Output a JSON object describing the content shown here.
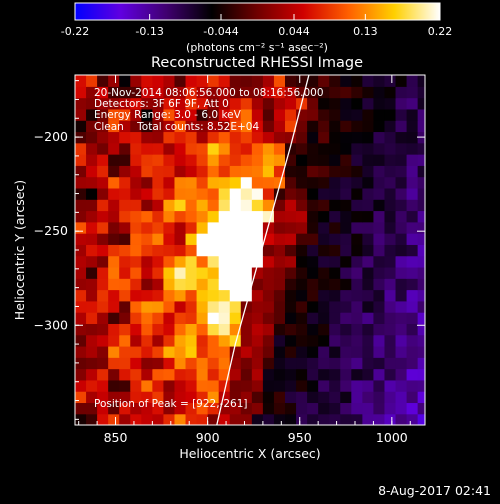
{
  "figure": {
    "title": "Reconstructed RHESSI Image",
    "annotations": [
      "20-Nov-2014 08:06:56.000 to 08:16:56.000",
      "Detectors: 3F 6F 9F, Att 0",
      "Energy Range: 3.0 - 6.0 keV",
      "Clean    Total counts: 8.52E+04"
    ],
    "peak_label": "Position of Peak = [922,-261]",
    "footer_date": "8-Aug-2017 02:41"
  },
  "colorbar": {
    "tick_labels": [
      "-0.22",
      "-0.13",
      "-0.044",
      "0.044",
      "0.13",
      "0.22"
    ],
    "unit_label": "(photons cm⁻² s⁻¹ asec⁻²)",
    "range": [
      -0.22,
      0.22
    ],
    "colormap": [
      "#0000ff",
      "#6000e0",
      "#400070",
      "#000000",
      "#700000",
      "#d00000",
      "#ff6000",
      "#ffd000",
      "#ffffff"
    ]
  },
  "chart_data": {
    "type": "heatmap",
    "title": "Reconstructed RHESSI Image",
    "xlabel": "Heliocentric X (arcsec)",
    "ylabel": "Heliocentric Y (arcsec)",
    "xlim": [
      828,
      1018
    ],
    "ylim": [
      -353,
      -167
    ],
    "x_ticks": [
      850,
      900,
      950,
      1000
    ],
    "y_ticks": [
      -200,
      -250,
      -300
    ],
    "peak": {
      "x": 922,
      "y": -261
    },
    "limb_curve": [
      [
        905,
        -353
      ],
      [
        915,
        -310
      ],
      [
        925,
        -275
      ],
      [
        935,
        -240
      ],
      [
        945,
        -205
      ],
      [
        955,
        -167
      ]
    ],
    "pixel_size_arcsec": 6,
    "cmap": "rhessi-blue-red-yellow",
    "vmin": -0.22,
    "vmax": 0.22
  }
}
